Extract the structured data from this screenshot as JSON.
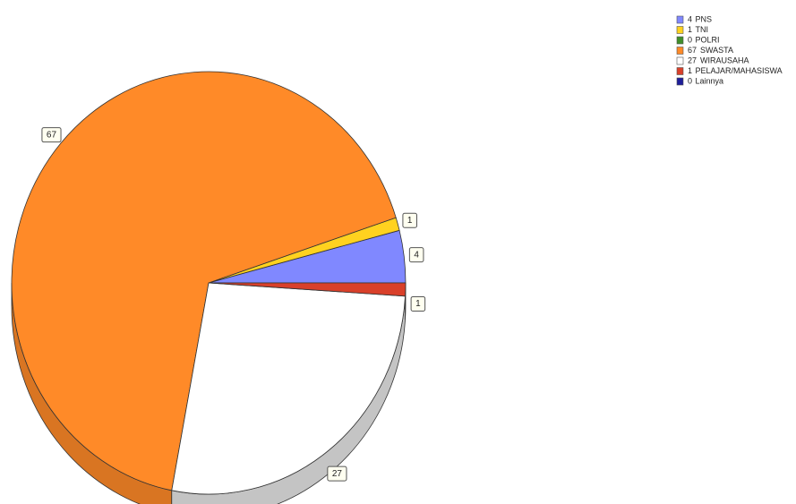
{
  "chart_data": {
    "type": "pie",
    "categories": [
      "PNS",
      "TNI",
      "POLRI",
      "SWASTA",
      "WIRAUSAHA",
      "PELAJAR/MAHASISWA",
      "Lainnya"
    ],
    "values": [
      4,
      1,
      0,
      67,
      27,
      1,
      0
    ],
    "colors": [
      "#8088ff",
      "#ffd21f",
      "#3f8f2a",
      "#ff8a28",
      "#ffffff",
      "#d9402a",
      "#1e1e9a"
    ],
    "legend": "top-right"
  }
}
